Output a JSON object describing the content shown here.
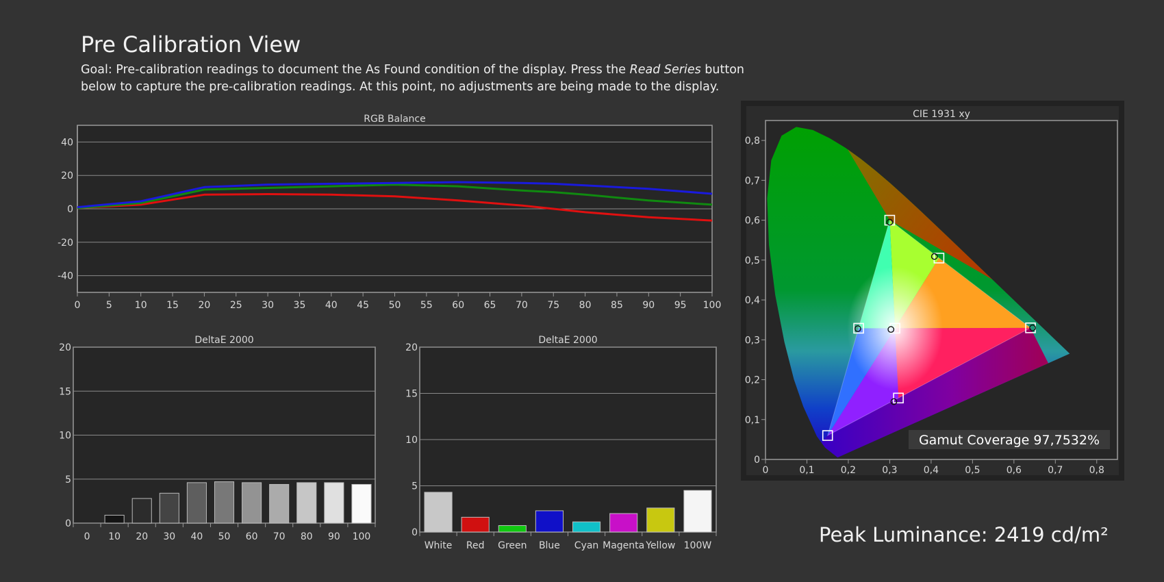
{
  "page": {
    "title": "Pre Calibration View",
    "goal_prefix": "Goal: Pre-calibration readings to document the As Found condition of the display. Press the ",
    "goal_emphasis": "Read Series",
    "goal_suffix": " button below to capture the pre-calibration readings. At this point, no adjustments are being made to the display.",
    "peak_luminance": "Peak Luminance: 2419 cd/m²"
  },
  "colors": {
    "background": "#333333",
    "plot_bg": "#262626",
    "grid": "#8a8a8a",
    "red": "#e01010",
    "green": "#108a10",
    "blue": "#1a1adc"
  },
  "chart_data": [
    {
      "type": "line",
      "title": "RGB Balance",
      "x": [
        0,
        10,
        20,
        30,
        40,
        50,
        60,
        70,
        75,
        80,
        90,
        100
      ],
      "xticks": [
        "0",
        "5",
        "10",
        "15",
        "20",
        "25",
        "30",
        "35",
        "40",
        "45",
        "50",
        "55",
        "60",
        "65",
        "70",
        "75",
        "80",
        "85",
        "90",
        "95",
        "100"
      ],
      "yticks": [
        "40",
        "20",
        "0",
        "-20",
        "-40"
      ],
      "xlim": [
        0,
        100
      ],
      "ylim": [
        -50,
        50
      ],
      "grid": true,
      "series": [
        {
          "color": "red",
          "values": [
            0.5,
            2.5,
            8.5,
            8.8,
            8.5,
            7.5,
            5,
            2,
            0,
            -2,
            -5,
            -7
          ]
        },
        {
          "color": "green",
          "values": [
            0.5,
            3.5,
            11.5,
            12.5,
            13.5,
            14.5,
            13.5,
            11,
            10,
            8.5,
            5,
            2.5
          ]
        },
        {
          "color": "blue",
          "values": [
            1,
            4.5,
            13,
            14.5,
            15,
            15.5,
            16,
            15.5,
            15,
            14,
            12,
            9
          ]
        }
      ]
    },
    {
      "type": "bar",
      "title": "DeltaE 2000",
      "categories": [
        "0",
        "10",
        "20",
        "30",
        "40",
        "50",
        "60",
        "70",
        "80",
        "90",
        "100"
      ],
      "values": [
        0,
        0.9,
        2.8,
        3.4,
        4.6,
        4.7,
        4.6,
        4.4,
        4.6,
        4.6,
        4.4
      ],
      "bar_colors": [
        "#000000",
        "#141414",
        "#2c2c2c",
        "#444444",
        "#5e5e5e",
        "#787878",
        "#939393",
        "#ababab",
        "#c6c6c6",
        "#e0e0e0",
        "#fafafa"
      ],
      "yticks": [
        "20",
        "15",
        "10",
        "5",
        "0"
      ],
      "ylim": [
        0,
        20
      ],
      "grid": true
    },
    {
      "type": "bar",
      "title": "DeltaE 2000",
      "categories": [
        "White",
        "Red",
        "Green",
        "Blue",
        "Cyan",
        "Magenta",
        "Yellow",
        "100W"
      ],
      "values": [
        4.3,
        1.6,
        0.7,
        2.3,
        1.1,
        2.0,
        2.6,
        4.5
      ],
      "bar_colors": [
        "#c8c8c8",
        "#d01010",
        "#10c810",
        "#1010c8",
        "#10c0c8",
        "#c810c8",
        "#c8c810",
        "#f5f5f5"
      ],
      "yticks": [
        "20",
        "15",
        "10",
        "5",
        "0"
      ],
      "ylim": [
        0,
        20
      ],
      "grid": true
    },
    {
      "type": "scatter",
      "title": "CIE 1931 xy",
      "xticks": [
        "0",
        "0,1",
        "0,2",
        "0,3",
        "0,4",
        "0,5",
        "0,6",
        "0,7",
        "0,8"
      ],
      "yticks": [
        "0,8",
        "0,7",
        "0,6",
        "0,5",
        "0,4",
        "0,3",
        "0,2",
        "0,1",
        "0"
      ],
      "xlim": [
        0,
        0.85
      ],
      "ylim": [
        0,
        0.85
      ],
      "gamut_coverage": "Gamut Coverage 97,7532%",
      "targets": [
        {
          "name": "red",
          "x": 0.64,
          "y": 0.33
        },
        {
          "name": "green",
          "x": 0.3,
          "y": 0.6
        },
        {
          "name": "blue",
          "x": 0.15,
          "y": 0.06
        },
        {
          "name": "cyan",
          "x": 0.225,
          "y": 0.329
        },
        {
          "name": "magenta",
          "x": 0.321,
          "y": 0.154
        },
        {
          "name": "yellow",
          "x": 0.419,
          "y": 0.505
        },
        {
          "name": "white",
          "x": 0.3127,
          "y": 0.329
        }
      ],
      "measured": [
        {
          "name": "red",
          "x": 0.645,
          "y": 0.33
        },
        {
          "name": "green",
          "x": 0.3,
          "y": 0.595
        },
        {
          "name": "cyan",
          "x": 0.223,
          "y": 0.328
        },
        {
          "name": "magenta",
          "x": 0.31,
          "y": 0.145
        },
        {
          "name": "yellow",
          "x": 0.408,
          "y": 0.509
        },
        {
          "name": "white",
          "x": 0.303,
          "y": 0.326
        }
      ]
    }
  ]
}
